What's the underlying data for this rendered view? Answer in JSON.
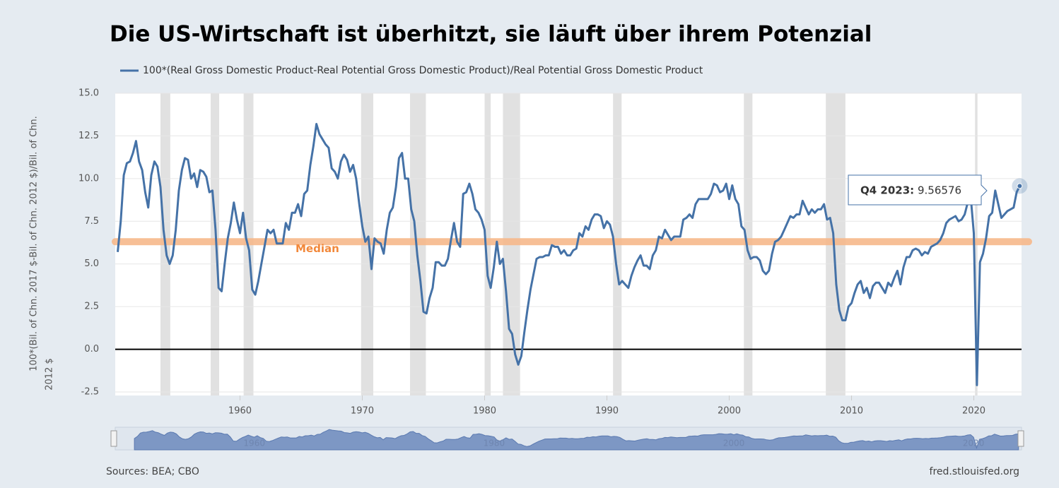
{
  "chart_data": {
    "type": "line",
    "title": "Die US-Wirtschaft ist überhitzt, sie läuft über ihrem Potenzial",
    "y_label_lines": [
      "100*(Bil. of Chn. 2017 $-Bil. of Chn. 2012 $)/Bil. of Chn.",
      "2012 $"
    ],
    "xlim": [
      1949.8,
      2023.9
    ],
    "ylim": [
      -2.5,
      15
    ],
    "xticks": [
      1960,
      1970,
      1980,
      1990,
      2000,
      2010,
      2020
    ],
    "yticks": [
      {
        "value": 15,
        "label": "15.0"
      },
      12.5,
      {
        "value": 10,
        "label": "10.0"
      },
      7.5,
      {
        "value": 5,
        "label": "5.0"
      },
      2.5,
      {
        "value": 0,
        "label": "0.0"
      },
      -2.5
    ],
    "grid": true,
    "recession_color": "#e1e1e1",
    "recessions": [
      [
        1953.5,
        1954.3
      ],
      [
        1957.6,
        1958.3
      ],
      [
        1960.3,
        1961.1
      ],
      [
        1969.9,
        1970.9
      ],
      [
        1973.9,
        1975.2
      ],
      [
        1980.0,
        1980.5
      ],
      [
        1981.5,
        1982.9
      ],
      [
        1990.5,
        1991.2
      ],
      [
        2001.2,
        2001.9
      ],
      [
        2007.9,
        2009.5
      ],
      [
        2020.1,
        2020.3
      ]
    ],
    "median": {
      "label": "Median",
      "value": 6.3,
      "color": "#f7b98b",
      "text_color": "#f2883a"
    },
    "tooltip": {
      "label": "Q4 2023:"
    },
    "sources": "Sources: BEA; CBO",
    "credit": "fred.stlouisfed.org",
    "navigator": {
      "xlim": [
        1948.4,
        2024.0
      ],
      "labels": [
        1960,
        1980,
        2000,
        2020
      ]
    },
    "x": [
      1950,
      1950.25,
      1950.5,
      1950.75,
      1951,
      1951.25,
      1951.5,
      1951.75,
      1952,
      1952.25,
      1952.5,
      1952.75,
      1953,
      1953.25,
      1953.5,
      1953.75,
      1954,
      1954.25,
      1954.5,
      1954.75,
      1955,
      1955.25,
      1955.5,
      1955.75,
      1956,
      1956.25,
      1956.5,
      1956.75,
      1957,
      1957.25,
      1957.5,
      1957.75,
      1958,
      1958.25,
      1958.5,
      1958.75,
      1959,
      1959.25,
      1959.5,
      1959.75,
      1960,
      1960.25,
      1960.5,
      1960.75,
      1961,
      1961.25,
      1961.5,
      1961.75,
      1962,
      1962.25,
      1962.5,
      1962.75,
      1963,
      1963.25,
      1963.5,
      1963.75,
      1964,
      1964.25,
      1964.5,
      1964.75,
      1965,
      1965.25,
      1965.5,
      1965.75,
      1966,
      1966.25,
      1966.5,
      1966.75,
      1967,
      1967.25,
      1967.5,
      1967.75,
      1968,
      1968.25,
      1968.5,
      1968.75,
      1969,
      1969.25,
      1969.5,
      1969.75,
      1970,
      1970.25,
      1970.5,
      1970.75,
      1971,
      1971.25,
      1971.5,
      1971.75,
      1972,
      1972.25,
      1972.5,
      1972.75,
      1973,
      1973.25,
      1973.5,
      1973.75,
      1974,
      1974.25,
      1974.5,
      1974.75,
      1975,
      1975.25,
      1975.5,
      1975.75,
      1976,
      1976.25,
      1976.5,
      1976.75,
      1977,
      1977.25,
      1977.5,
      1977.75,
      1978,
      1978.25,
      1978.5,
      1978.75,
      1979,
      1979.25,
      1979.5,
      1979.75,
      1980,
      1980.25,
      1980.5,
      1980.75,
      1981,
      1981.25,
      1981.5,
      1981.75,
      1982,
      1982.25,
      1982.5,
      1982.75,
      1983,
      1983.25,
      1983.5,
      1983.75,
      1984,
      1984.25,
      1984.5,
      1984.75,
      1985,
      1985.25,
      1985.5,
      1985.75,
      1986,
      1986.25,
      1986.5,
      1986.75,
      1987,
      1987.25,
      1987.5,
      1987.75,
      1988,
      1988.25,
      1988.5,
      1988.75,
      1989,
      1989.25,
      1989.5,
      1989.75,
      1990,
      1990.25,
      1990.5,
      1990.75,
      1991,
      1991.25,
      1991.5,
      1991.75,
      1992,
      1992.25,
      1992.5,
      1992.75,
      1993,
      1993.25,
      1993.5,
      1993.75,
      1994,
      1994.25,
      1994.5,
      1994.75,
      1995,
      1995.25,
      1995.5,
      1995.75,
      1996,
      1996.25,
      1996.5,
      1996.75,
      1997,
      1997.25,
      1997.5,
      1997.75,
      1998,
      1998.25,
      1998.5,
      1998.75,
      1999,
      1999.25,
      1999.5,
      1999.75,
      2000,
      2000.25,
      2000.5,
      2000.75,
      2001,
      2001.25,
      2001.5,
      2001.75,
      2002,
      2002.25,
      2002.5,
      2002.75,
      2003,
      2003.25,
      2003.5,
      2003.75,
      2004,
      2004.25,
      2004.5,
      2004.75,
      2005,
      2005.25,
      2005.5,
      2005.75,
      2006,
      2006.25,
      2006.5,
      2006.75,
      2007,
      2007.25,
      2007.5,
      2007.75,
      2008,
      2008.25,
      2008.5,
      2008.75,
      2009,
      2009.25,
      2009.5,
      2009.75,
      2010,
      2010.25,
      2010.5,
      2010.75,
      2011,
      2011.25,
      2011.5,
      2011.75,
      2012,
      2012.25,
      2012.5,
      2012.75,
      2013,
      2013.25,
      2013.5,
      2013.75,
      2014,
      2014.25,
      2014.5,
      2014.75,
      2015,
      2015.25,
      2015.5,
      2015.75,
      2016,
      2016.25,
      2016.5,
      2016.75,
      2017,
      2017.25,
      2017.5,
      2017.75,
      2018,
      2018.25,
      2018.5,
      2018.75,
      2019,
      2019.25,
      2019.5,
      2019.75,
      2020,
      2020.25,
      2020.5,
      2020.75,
      2021,
      2021.25,
      2021.5,
      2021.75,
      2022,
      2022.25,
      2022.5,
      2022.75,
      2023,
      2023.25,
      2023.5,
      2023.75
    ],
    "series": [
      {
        "name": "100*(Real Gross Domestic Product-Real Potential Gross Domestic Product)/Real Potential Gross Domestic Product",
        "color": "#4572a7",
        "values": [
          5.7,
          7.5,
          10.2,
          10.9,
          11.0,
          11.5,
          12.2,
          11.0,
          10.5,
          9.2,
          8.3,
          10.2,
          11.0,
          10.7,
          9.5,
          7.0,
          5.5,
          5.0,
          5.5,
          7.0,
          9.3,
          10.5,
          11.2,
          11.1,
          10.0,
          10.3,
          9.5,
          10.5,
          10.4,
          10.1,
          9.2,
          9.3,
          7.0,
          3.6,
          3.4,
          5.0,
          6.5,
          7.4,
          8.6,
          7.6,
          6.8,
          8.0,
          6.5,
          5.8,
          3.5,
          3.2,
          4.0,
          5.0,
          6.0,
          7.0,
          6.8,
          7.0,
          6.2,
          6.2,
          6.2,
          7.4,
          7.0,
          8.0,
          8.0,
          8.5,
          7.8,
          9.1,
          9.3,
          10.8,
          11.9,
          13.2,
          12.6,
          12.3,
          12.0,
          11.8,
          10.6,
          10.4,
          10.0,
          11.0,
          11.4,
          11.1,
          10.4,
          10.8,
          10.0,
          8.5,
          7.2,
          6.3,
          6.6,
          4.7,
          6.5,
          6.3,
          6.2,
          5.6,
          7.0,
          8.0,
          8.3,
          9.5,
          11.2,
          11.5,
          10.0,
          10.0,
          8.2,
          7.5,
          5.5,
          4.0,
          2.2,
          2.1,
          3.0,
          3.6,
          5.1,
          5.1,
          4.9,
          4.9,
          5.3,
          6.4,
          7.4,
          6.3,
          6.0,
          9.1,
          9.2,
          9.7,
          9.1,
          8.2,
          8.0,
          7.6,
          7.0,
          4.3,
          3.6,
          4.8,
          6.3,
          5.0,
          5.3,
          3.4,
          1.2,
          0.9,
          -0.3,
          -0.9,
          -0.4,
          1.0,
          2.3,
          3.5,
          4.4,
          5.3,
          5.4,
          5.4,
          5.5,
          5.5,
          6.1,
          6.0,
          6.0,
          5.6,
          5.8,
          5.5,
          5.5,
          5.8,
          5.9,
          6.8,
          6.6,
          7.2,
          7.0,
          7.6,
          7.9,
          7.9,
          7.8,
          7.1,
          7.5,
          7.3,
          6.6,
          5.0,
          3.8,
          4.0,
          3.8,
          3.6,
          4.3,
          4.8,
          5.2,
          5.5,
          4.9,
          4.9,
          4.7,
          5.5,
          5.8,
          6.6,
          6.5,
          7.0,
          6.7,
          6.4,
          6.6,
          6.6,
          6.6,
          7.6,
          7.7,
          7.9,
          7.7,
          8.5,
          8.8,
          8.8,
          8.8,
          8.8,
          9.1,
          9.7,
          9.6,
          9.2,
          9.3,
          9.7,
          8.8,
          9.6,
          8.8,
          8.5,
          7.2,
          7.0,
          5.8,
          5.3,
          5.4,
          5.4,
          5.2,
          4.6,
          4.4,
          4.6,
          5.6,
          6.3,
          6.4,
          6.6,
          7.0,
          7.4,
          7.8,
          7.7,
          7.9,
          7.9,
          8.7,
          8.3,
          7.9,
          8.2,
          8.0,
          8.2,
          8.2,
          8.5,
          7.6,
          7.7,
          6.8,
          3.8,
          2.3,
          1.7,
          1.7,
          2.5,
          2.7,
          3.3,
          3.8,
          4.0,
          3.3,
          3.6,
          3.0,
          3.7,
          3.9,
          3.9,
          3.6,
          3.3,
          3.9,
          3.7,
          4.2,
          4.6,
          3.8,
          4.8,
          5.4,
          5.4,
          5.8,
          5.9,
          5.8,
          5.5,
          5.7,
          5.6,
          6.0,
          6.1,
          6.2,
          6.4,
          6.8,
          7.4,
          7.6,
          7.7,
          7.8,
          7.5,
          7.6,
          7.9,
          8.6,
          8.9,
          6.8,
          -2.1,
          5.1,
          5.6,
          6.5,
          7.8,
          8.0,
          9.3,
          8.5,
          7.7,
          7.9,
          8.1,
          8.2,
          8.3,
          9.2,
          9.56576
        ]
      }
    ]
  }
}
